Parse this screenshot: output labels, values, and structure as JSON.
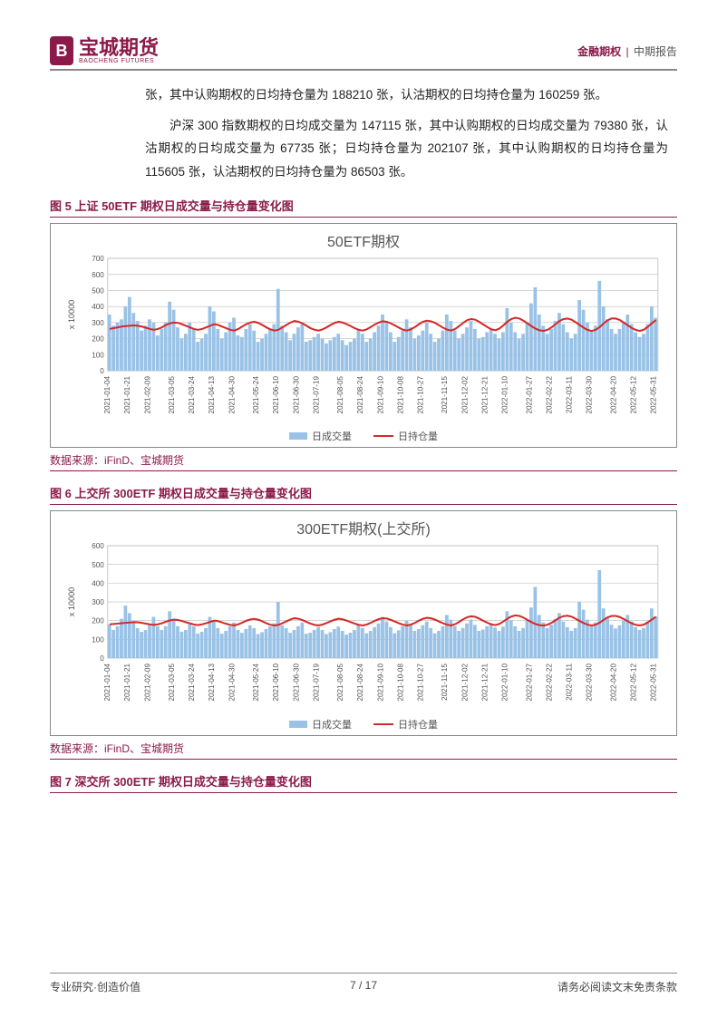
{
  "header": {
    "logo_glyph": "B",
    "logo_cn": "宝城期货",
    "logo_en": "BAOCHENG FUTURES",
    "category": "金融期权",
    "report_type": "中期报告"
  },
  "paragraphs": {
    "p1": "张，其中认购期权的日均持仓量为 188210 张，认沽期权的日均持仓量为 160259 张。",
    "p2": "沪深 300 指数期权的日均成交量为 147115 张，其中认购期权的日均成交量为 79380 张，认沽期权的日均成交量为 67735 张；日均持仓量为 202107 张，其中认购期权的日均持仓量为 115605 张，认沽期权的日均持仓量为 86503 张。"
  },
  "figures": {
    "fig5": {
      "title": "图 5  上证 50ETF 期权日成交量与持仓量变化图",
      "chart_title": "50ETF期权",
      "source_label": "数据来源：iFinD、宝城期货"
    },
    "fig6": {
      "title": "图 6  上交所 300ETF 期权日成交量与持仓量变化图",
      "chart_title": "300ETF期权(上交所)",
      "source_label": "数据来源：iFinD、宝城期货"
    },
    "fig7": {
      "title": "图 7  深交所 300ETF 期权日成交量与持仓量变化图"
    }
  },
  "chart_common": {
    "x_labels": [
      "2021-01-04",
      "2021-01-21",
      "2021-02-09",
      "2021-03-05",
      "2021-03-24",
      "2021-04-13",
      "2021-04-30",
      "2021-05-24",
      "2021-06-10",
      "2021-06-30",
      "2021-07-19",
      "2021-08-05",
      "2021-08-24",
      "2021-09-10",
      "2021-10-08",
      "2021-10-27",
      "2021-11-15",
      "2021-12-02",
      "2021-12-21",
      "2022-01-10",
      "2022-01-27",
      "2022-02-22",
      "2022-03-11",
      "2022-03-30",
      "2022-04-20",
      "2022-05-12",
      "2022-05-31"
    ],
    "y_axis_label": "x 10000",
    "legend": {
      "bar": "日成交量",
      "line": "日持仓量"
    },
    "colors": {
      "bar": "#99c2e6",
      "line": "#d62828",
      "background": "#ffffff",
      "grid": "#bdbdbd",
      "axis_text": "#555555",
      "border_box": "#888888"
    },
    "axis_fontsize": 8,
    "title_fontsize": 16,
    "legend_fontsize": 11
  },
  "chart5": {
    "type": "bar+line",
    "ylim": [
      0,
      700
    ],
    "ytick_step": 100,
    "bars": [
      350,
      280,
      300,
      320,
      400,
      460,
      360,
      310,
      250,
      280,
      320,
      300,
      220,
      260,
      300,
      430,
      380,
      270,
      200,
      230,
      300,
      260,
      180,
      200,
      230,
      400,
      370,
      260,
      200,
      240,
      300,
      330,
      220,
      210,
      260,
      290,
      250,
      180,
      200,
      230,
      260,
      290,
      510,
      280,
      240,
      190,
      230,
      270,
      300,
      180,
      190,
      210,
      230,
      200,
      170,
      190,
      210,
      230,
      190,
      160,
      180,
      200,
      260,
      230,
      180,
      200,
      240,
      280,
      350,
      300,
      240,
      180,
      210,
      250,
      320,
      270,
      200,
      220,
      250,
      300,
      230,
      180,
      200,
      250,
      350,
      310,
      250,
      200,
      230,
      270,
      310,
      260,
      200,
      210,
      240,
      260,
      230,
      200,
      240,
      390,
      300,
      240,
      200,
      230,
      300,
      420,
      520,
      350,
      280,
      230,
      260,
      310,
      360,
      290,
      240,
      200,
      230,
      440,
      380,
      300,
      250,
      280,
      560,
      400,
      320,
      260,
      230,
      260,
      300,
      350,
      290,
      240,
      210,
      230,
      290,
      400,
      330
    ],
    "line": [
      260,
      265,
      270,
      275,
      278,
      280,
      282,
      280,
      275,
      268,
      260,
      255,
      260,
      270,
      285,
      295,
      300,
      298,
      290,
      280,
      270,
      260,
      255,
      260,
      270,
      280,
      290,
      285,
      275,
      265,
      255,
      250,
      260,
      275,
      290,
      300,
      305,
      298,
      285,
      270,
      258,
      250,
      255,
      270,
      285,
      300,
      310,
      305,
      295,
      280,
      265,
      255,
      250,
      258,
      270,
      285,
      298,
      305,
      300,
      290,
      278,
      265,
      255,
      250,
      258,
      272,
      288,
      300,
      308,
      305,
      295,
      282,
      268,
      256,
      250,
      258,
      272,
      290,
      305,
      312,
      308,
      298,
      283,
      268,
      256,
      250,
      260,
      278,
      298,
      315,
      322,
      318,
      305,
      288,
      272,
      258,
      252,
      262,
      282,
      305,
      322,
      330,
      325,
      312,
      295,
      278,
      262,
      252,
      248,
      255,
      270,
      290,
      310,
      322,
      325,
      318,
      302,
      285,
      268,
      254,
      248,
      255,
      272,
      295,
      315,
      326,
      325,
      316,
      300,
      283,
      266,
      254,
      248,
      256,
      274,
      296,
      316
    ],
    "n": 137
  },
  "chart6": {
    "type": "bar+line",
    "ylim": [
      0,
      600
    ],
    "ytick_step": 100,
    "bars": [
      180,
      150,
      170,
      210,
      280,
      240,
      190,
      160,
      140,
      150,
      180,
      220,
      170,
      150,
      170,
      250,
      210,
      170,
      140,
      150,
      180,
      170,
      130,
      140,
      160,
      220,
      200,
      160,
      130,
      145,
      170,
      190,
      150,
      135,
      155,
      175,
      160,
      128,
      138,
      155,
      170,
      185,
      300,
      175,
      160,
      135,
      150,
      170,
      190,
      130,
      135,
      150,
      165,
      150,
      128,
      138,
      155,
      168,
      145,
      125,
      135,
      150,
      175,
      160,
      132,
      145,
      165,
      185,
      220,
      195,
      165,
      132,
      148,
      170,
      200,
      178,
      145,
      155,
      175,
      195,
      160,
      132,
      145,
      170,
      230,
      205,
      170,
      145,
      160,
      185,
      205,
      177,
      145,
      152,
      170,
      182,
      163,
      145,
      168,
      250,
      203,
      170,
      145,
      160,
      200,
      270,
      380,
      230,
      190,
      160,
      178,
      208,
      240,
      195,
      165,
      145,
      160,
      300,
      258,
      205,
      170,
      190,
      470,
      265,
      215,
      178,
      158,
      175,
      200,
      230,
      195,
      165,
      150,
      160,
      195,
      265,
      222
    ],
    "line": [
      180,
      182,
      184,
      186,
      188,
      190,
      192,
      191,
      188,
      184,
      180,
      177,
      180,
      186,
      194,
      201,
      205,
      203,
      198,
      191,
      185,
      179,
      176,
      180,
      186,
      193,
      200,
      197,
      190,
      183,
      177,
      174,
      180,
      189,
      199,
      206,
      209,
      205,
      196,
      186,
      178,
      174,
      177,
      186,
      196,
      206,
      213,
      210,
      203,
      193,
      184,
      177,
      174,
      179,
      187,
      196,
      205,
      210,
      207,
      200,
      192,
      184,
      177,
      174,
      179,
      188,
      199,
      208,
      213,
      211,
      204,
      195,
      186,
      178,
      174,
      179,
      188,
      200,
      210,
      215,
      212,
      205,
      195,
      186,
      178,
      174,
      181,
      193,
      207,
      218,
      223,
      220,
      211,
      199,
      189,
      180,
      176,
      182,
      195,
      210,
      222,
      228,
      225,
      216,
      204,
      192,
      182,
      176,
      173,
      178,
      188,
      202,
      216,
      224,
      226,
      221,
      210,
      198,
      187,
      178,
      174,
      178,
      189,
      204,
      218,
      225,
      225,
      219,
      208,
      196,
      185,
      177,
      174,
      179,
      191,
      206,
      220
    ],
    "n": 137
  },
  "footer": {
    "left": "专业研究·创造价值",
    "mid": "7 / 17",
    "right": "请务必阅读文末免责条款"
  }
}
